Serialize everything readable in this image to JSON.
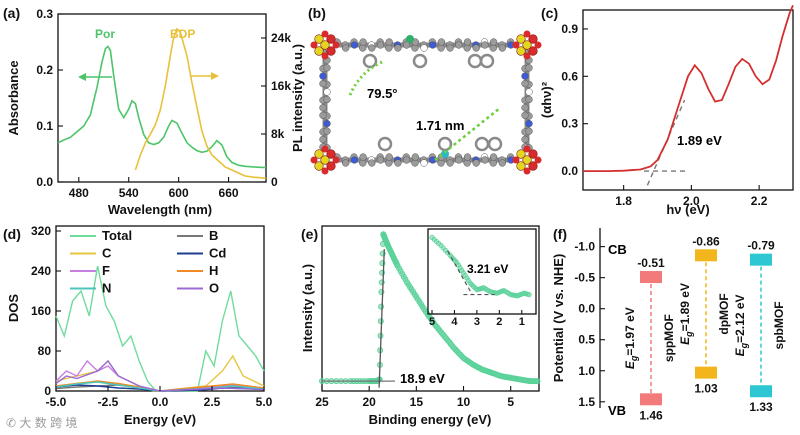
{
  "colors": {
    "por": "#4cc46a",
    "bdp": "#e8c13a",
    "red": "#d42f2f",
    "mint": "#59d199",
    "total": "#6fdc9c",
    "b": "#777777",
    "c": "#e5c642",
    "cd": "#1d3d8f",
    "f": "#c77fe0",
    "h": "#f08a25",
    "n": "#4cc6bb",
    "o": "#9c6ad6",
    "sppMOF": "#f27a7a",
    "dpMOF": "#f2b51c",
    "spbMOF": "#2cc7d2"
  },
  "chart_data": [
    {
      "panel": "(a)",
      "type": "line",
      "xlabel": "Wavelength (nm)",
      "ylabel": "Absorbance",
      "y2label": "PL intensity (a.u.)",
      "xlim": [
        455,
        705
      ],
      "ylim": [
        0,
        0.3
      ],
      "y2lim": [
        0,
        28000
      ],
      "xticks": [
        "480",
        "540",
        "600",
        "660"
      ],
      "yticks": [
        "0.0",
        "0.1",
        "0.2",
        "0.3"
      ],
      "y2ticks": [
        "0",
        "8k",
        "16k",
        "24k"
      ],
      "series": [
        {
          "name": "Por",
          "axis": "left",
          "x": [
            455,
            462,
            470,
            478,
            486,
            494,
            502,
            508,
            512,
            515,
            518,
            522,
            528,
            534,
            540,
            544,
            548,
            552,
            558,
            564,
            570,
            576,
            582,
            588,
            592,
            598,
            604,
            610,
            616,
            622,
            628,
            634,
            640,
            646,
            652,
            658,
            664,
            672,
            680,
            690,
            700,
            705
          ],
          "y": [
            0.07,
            0.075,
            0.08,
            0.09,
            0.1,
            0.12,
            0.17,
            0.215,
            0.238,
            0.242,
            0.235,
            0.19,
            0.13,
            0.115,
            0.13,
            0.145,
            0.14,
            0.115,
            0.085,
            0.07,
            0.067,
            0.07,
            0.08,
            0.1,
            0.11,
            0.105,
            0.087,
            0.07,
            0.062,
            0.056,
            0.053,
            0.055,
            0.063,
            0.074,
            0.066,
            0.045,
            0.035,
            0.03,
            0.028,
            0.027,
            0.026,
            0.026
          ]
        },
        {
          "name": "BDP",
          "axis": "right",
          "x": [
            548,
            554,
            560,
            566,
            572,
            578,
            584,
            590,
            594,
            598,
            602,
            606,
            610,
            616,
            622,
            628,
            634,
            640,
            648,
            656,
            664,
            672,
            680,
            690,
            700,
            705
          ],
          "y": [
            2000,
            4500,
            6500,
            8000,
            9500,
            12000,
            16000,
            21000,
            24000,
            25500,
            25000,
            23000,
            21000,
            16500,
            12500,
            8500,
            6000,
            4500,
            3500,
            2500,
            2000,
            1500,
            1000,
            800,
            700,
            600
          ]
        }
      ],
      "annotations": [
        "Por",
        "BDP"
      ]
    },
    {
      "panel": "(b)",
      "type": "structure",
      "annotations": [
        "79.5°",
        "1.71 nm"
      ]
    },
    {
      "panel": "(c)",
      "type": "line",
      "xlabel": "hν (eV)",
      "ylabel": "(αhν)²",
      "xlim": [
        1.68,
        2.3
      ],
      "ylim": [
        -0.12,
        1.02
      ],
      "xticks": [
        "1.8",
        "2.0",
        "2.2"
      ],
      "yticks": [
        "0.0",
        "0.3",
        "0.6",
        "0.9"
      ],
      "series": [
        {
          "name": "Tauc plot",
          "x": [
            1.68,
            1.75,
            1.8,
            1.85,
            1.88,
            1.9,
            1.93,
            1.96,
            1.99,
            2.01,
            2.03,
            2.05,
            2.07,
            2.09,
            2.11,
            2.13,
            2.15,
            2.17,
            2.19,
            2.21,
            2.23,
            2.25,
            2.27,
            2.29,
            2.3
          ],
          "y": [
            0.0,
            0.0,
            0.002,
            0.01,
            0.03,
            0.07,
            0.2,
            0.4,
            0.6,
            0.67,
            0.62,
            0.52,
            0.44,
            0.45,
            0.55,
            0.66,
            0.71,
            0.68,
            0.6,
            0.55,
            0.58,
            0.7,
            0.86,
            1.0,
            1.05
          ]
        },
        {
          "name": "Baseline",
          "x": [
            1.86,
            1.99
          ],
          "y": [
            0.0,
            0.0
          ]
        },
        {
          "name": "Tangent",
          "x": [
            1.87,
            1.98
          ],
          "y": [
            -0.09,
            0.45
          ]
        }
      ],
      "annotations": [
        "1.89 eV"
      ]
    },
    {
      "panel": "(d)",
      "type": "line",
      "xlabel": "Energy (eV)",
      "ylabel": "DOS",
      "xlim": [
        -5.0,
        5.0
      ],
      "ylim": [
        0,
        330
      ],
      "xticks": [
        "-5.0",
        "-2.5",
        "0.0",
        "2.5",
        "5.0"
      ],
      "yticks": [
        "0",
        "80",
        "160",
        "240",
        "320"
      ],
      "legend": [
        "Total",
        "B",
        "C",
        "Cd",
        "F",
        "H",
        "N",
        "O"
      ],
      "series": [
        {
          "name": "Total",
          "x": [
            -5.0,
            -4.6,
            -4.2,
            -3.8,
            -3.4,
            -3.0,
            -2.6,
            -2.2,
            -1.8,
            -1.4,
            -1.0,
            -0.6,
            -0.2,
            0.2,
            0.6,
            1.0,
            1.4,
            1.8,
            2.2,
            2.6,
            3.0,
            3.4,
            3.8,
            4.2,
            4.6,
            5.0
          ],
          "y": [
            150,
            110,
            180,
            200,
            150,
            250,
            170,
            140,
            90,
            110,
            60,
            20,
            0,
            0,
            0,
            0,
            0,
            0,
            80,
            50,
            140,
            200,
            110,
            90,
            70,
            40
          ]
        },
        {
          "name": "C",
          "x": [
            -5.0,
            -4.0,
            -3.0,
            -2.5,
            -2.0,
            -1.5,
            -1.0,
            -0.3,
            0.0,
            2.2,
            3.0,
            3.5,
            4.0,
            5.0
          ],
          "y": [
            20,
            30,
            40,
            60,
            30,
            20,
            10,
            0,
            0,
            10,
            40,
            70,
            30,
            10
          ]
        },
        {
          "name": "B",
          "x": [
            -5.0,
            -4.0,
            -3.0,
            -2.0,
            -1.0,
            0.0,
            2.0,
            3.0,
            4.0,
            5.0
          ],
          "y": [
            5,
            8,
            10,
            12,
            6,
            0,
            2,
            8,
            6,
            3
          ]
        },
        {
          "name": "Cd",
          "x": [
            -5.0,
            -4.0,
            -3.0,
            -2.0,
            -1.0,
            0.0,
            2.0,
            3.0,
            4.0,
            5.0
          ],
          "y": [
            8,
            12,
            10,
            6,
            4,
            0,
            2,
            6,
            5,
            3
          ]
        },
        {
          "name": "F",
          "x": [
            -5.0,
            -4.5,
            -4.0,
            -3.5,
            -3.0,
            -2.5,
            -2.0,
            -1.5,
            -1.0,
            0.0,
            2.5,
            3.5,
            5.0
          ],
          "y": [
            20,
            40,
            30,
            60,
            40,
            50,
            30,
            20,
            10,
            0,
            8,
            12,
            5
          ]
        },
        {
          "name": "H",
          "x": [
            -5.0,
            -4.0,
            -3.0,
            -2.0,
            -1.0,
            0.0,
            2.5,
            3.5,
            5.0
          ],
          "y": [
            10,
            15,
            20,
            15,
            8,
            0,
            10,
            14,
            6
          ]
        },
        {
          "name": "N",
          "x": [
            -5.0,
            -4.0,
            -3.0,
            -2.0,
            -1.0,
            0.0,
            2.5,
            3.5,
            5.0
          ],
          "y": [
            8,
            14,
            18,
            12,
            6,
            0,
            6,
            10,
            4
          ]
        },
        {
          "name": "O",
          "x": [
            -5.0,
            -4.5,
            -4.0,
            -3.0,
            -2.5,
            -2.0,
            -1.0,
            0.0,
            3.0,
            5.0
          ],
          "y": [
            15,
            30,
            25,
            40,
            60,
            30,
            10,
            0,
            6,
            3
          ]
        }
      ]
    },
    {
      "panel": "(e)",
      "type": "line",
      "xlabel": "Binding energy (eV)",
      "ylabel": "Intensity (a.u.)",
      "xlim": [
        25,
        2
      ],
      "ylim": [
        0,
        100
      ],
      "xticks": [
        "25",
        "20",
        "15",
        "10",
        "5"
      ],
      "series": [
        {
          "name": "XPS",
          "x": [
            25,
            22,
            20,
            19.2,
            18.9,
            18.7,
            18.5,
            18.3,
            18.0,
            17.5,
            17,
            16,
            15,
            14,
            13,
            12,
            11,
            10,
            9,
            8,
            7,
            6,
            5,
            4,
            3,
            2
          ],
          "y": [
            6,
            6,
            6,
            6,
            7,
            60,
            95,
            92,
            88,
            82,
            76,
            66,
            57,
            48,
            40,
            33,
            26,
            20,
            16,
            13,
            11,
            9,
            8,
            7,
            6,
            6
          ]
        },
        {
          "name": "Tangent",
          "x": [
            18.95,
            18.4
          ],
          "y": [
            2,
            86
          ]
        }
      ],
      "inset": {
        "xticks": [
          "5",
          "4",
          "3",
          "2",
          "1"
        ],
        "xlim": [
          5,
          0.5
        ],
        "x": [
          5,
          4.6,
          4.2,
          3.9,
          3.6,
          3.3,
          3.0,
          2.7,
          2.4,
          2.1,
          1.8,
          1.5,
          1.2,
          0.9,
          0.6
        ],
        "y": [
          92,
          80,
          66,
          55,
          40,
          25,
          15,
          18,
          12,
          10,
          14,
          8,
          6,
          10,
          7
        ],
        "annotations": [
          "3.21 eV"
        ]
      },
      "annotations": [
        "18.9 eV"
      ]
    },
    {
      "panel": "(f)",
      "type": "diagram",
      "ylabel": "Potential (V vs. NHE)",
      "ylim": [
        -1.3,
        1.6
      ],
      "yticks": [
        "-1.0",
        "-0.5",
        "0.0",
        "0.5",
        "1.0",
        "1.5"
      ],
      "side_labels": [
        "CB",
        "VB"
      ],
      "materials": [
        {
          "name": "sppMOF",
          "cb": -0.51,
          "vb": 1.46,
          "cb_label": "-0.51",
          "vb_label": "1.46",
          "gap": "=1.97 eV"
        },
        {
          "name": "dpMOF",
          "cb": -0.86,
          "vb": 1.03,
          "cb_label": "-0.86",
          "vb_label": "1.03",
          "gap": "=1.89 eV"
        },
        {
          "name": "spbMOF",
          "cb": -0.79,
          "vb": 1.33,
          "cb_label": "-0.79",
          "vb_label": "1.33",
          "gap": "=2.12 eV"
        }
      ]
    }
  ],
  "watermark": "大 数 跨 境"
}
